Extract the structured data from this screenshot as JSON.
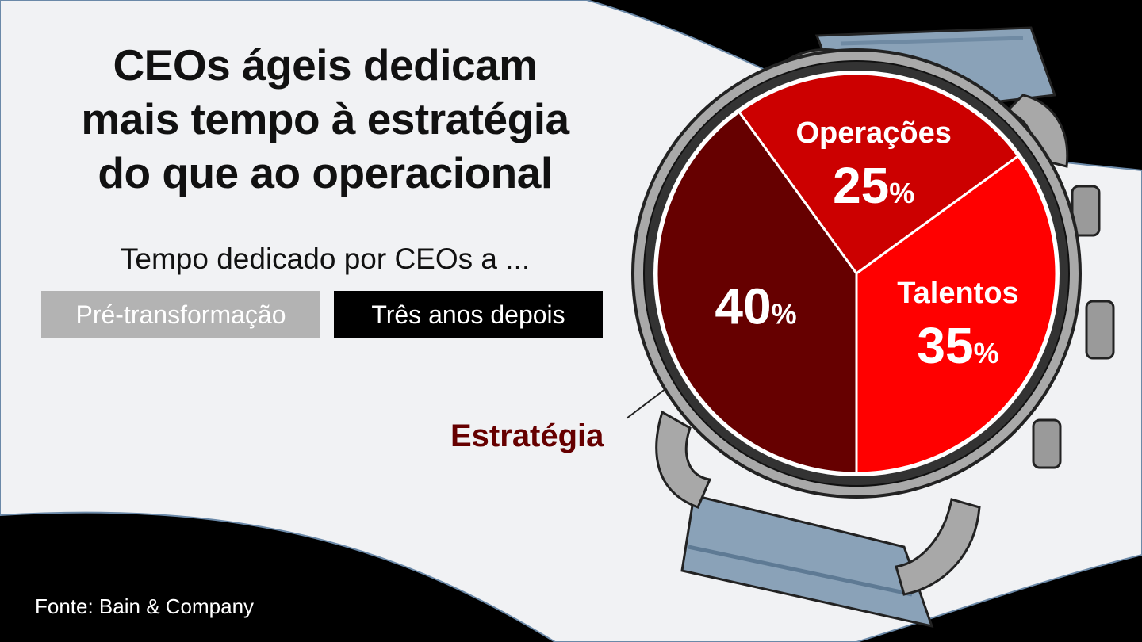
{
  "title_lines": [
    "CEOs ágeis dedicam",
    "mais tempo à estratégia",
    "do que ao operacional"
  ],
  "subtitle": "Tempo dedicado por CEOs a ...",
  "tabs": [
    {
      "label": "Pré-transformação",
      "active": false
    },
    {
      "label": "Três anos depois",
      "active": true
    }
  ],
  "source": "Fonte: Bain & Company",
  "colors": {
    "operacoes": "#cc0000",
    "talentos": "#ff0000",
    "estrategia": "#660000",
    "estrategia_label": "#660000"
  },
  "chart_data": {
    "type": "pie",
    "title": "",
    "slices": [
      {
        "label": "Operações",
        "value": 25,
        "display": "25",
        "unit": "%"
      },
      {
        "label": "Talentos",
        "value": 35,
        "display": "35",
        "unit": "%"
      },
      {
        "label": "Estratégia",
        "value": 40,
        "display": "40",
        "unit": "%"
      }
    ]
  }
}
